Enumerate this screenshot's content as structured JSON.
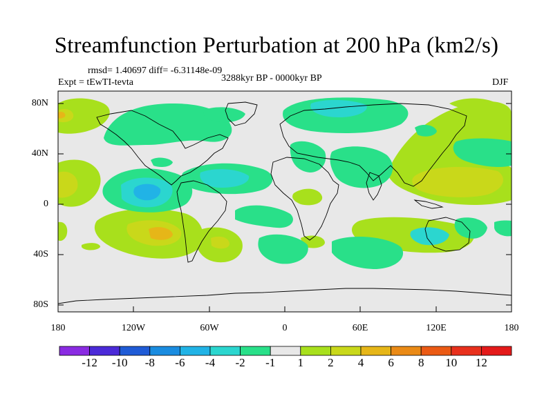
{
  "title": "Streamfunction Perturbation at 200 hPa (km2/s)",
  "stats": "rmsd= 1.40697 diff= -6.31148e-09",
  "experiment": "Expt = tEwTI-tevta",
  "period": "3288kyr BP - 0000kyr BP",
  "season": "DJF",
  "map": {
    "lat_labels": [
      "80N",
      "40N",
      "0",
      "40S",
      "80S"
    ],
    "lon_labels": [
      "180",
      "120W",
      "60W",
      "0",
      "60E",
      "120E",
      "180"
    ]
  },
  "colorbar": {
    "labels": [
      "-12",
      "-10",
      "-8",
      "-6",
      "-4",
      "-2",
      "-1",
      "1",
      "2",
      "4",
      "6",
      "8",
      "10",
      "12"
    ],
    "colors": [
      "#8a2be2",
      "#4b2ad8",
      "#1f5bd6",
      "#1a8ce0",
      "#21b3e6",
      "#2bd6cf",
      "#29e089",
      "#e8e8e8",
      "#a8e01c",
      "#c9d81a",
      "#e6b618",
      "#ea8a16",
      "#eb5a14",
      "#e8301c",
      "#e41a1a"
    ]
  },
  "colors": {
    "background": "#e8e8e8",
    "coast": "#000000"
  }
}
